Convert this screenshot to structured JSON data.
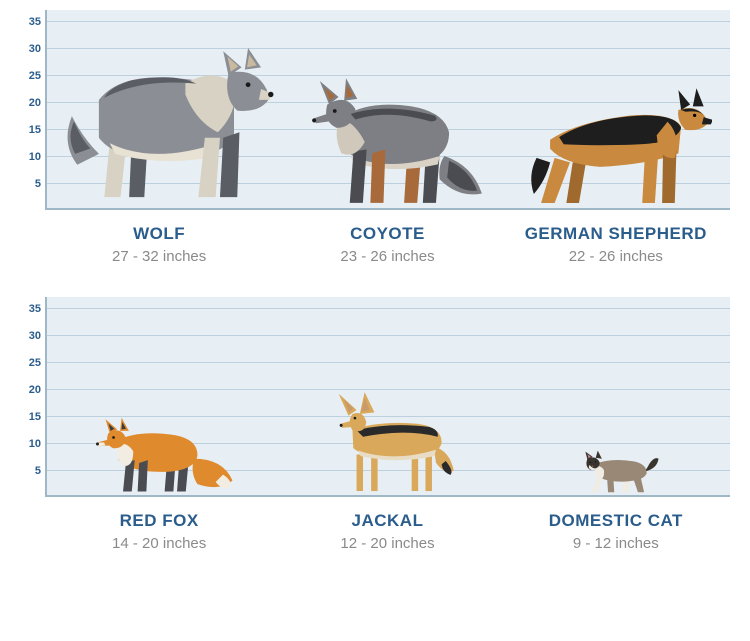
{
  "chart": {
    "type": "height-comparison-infographic",
    "background_color": "#e7eff4",
    "gridline_color": "#bcd0de",
    "axis_color": "#9fb8c8",
    "tick_label_color": "#2b5d8c",
    "tick_fontsize": 11,
    "name_color": "#2b5d8c",
    "name_fontsize": 17,
    "range_color": "#8a8a8a",
    "range_fontsize": 15,
    "y_ticks": [
      5,
      10,
      15,
      20,
      25,
      30,
      35
    ],
    "y_max": 37,
    "panels": [
      {
        "animals": [
          {
            "name": "WOLF",
            "range": "27 - 32 inches",
            "height_in": 32,
            "palette": {
              "body": "#8b8e94",
              "dark": "#5a5d63",
              "light": "#d8d2c4",
              "belly": "#e8e2d4",
              "ear_inner": "#c9b99e"
            }
          },
          {
            "name": "COYOTE",
            "range": "23 - 26 inches",
            "height_in": 26,
            "palette": {
              "body": "#7d7f84",
              "dark": "#4a4c51",
              "rust": "#a86a3a",
              "light": "#cfc8bb",
              "belly": "#d9d2c5"
            }
          },
          {
            "name": "GERMAN SHEPHERD",
            "range": "22 - 26 inches",
            "height_in": 26,
            "palette": {
              "tan": "#c98a3f",
              "black": "#1e1e1e",
              "dark_tan": "#a06a2e"
            }
          }
        ]
      },
      {
        "animals": [
          {
            "name": "RED FOX",
            "range": "14 - 20 inches",
            "height_in": 20,
            "palette": {
              "body": "#e08a2e",
              "dark": "#4a4c51",
              "white": "#f2ede3",
              "ear_dark": "#3a3c40"
            }
          },
          {
            "name": "JACKAL",
            "range": "12 - 20 inches",
            "height_in": 20,
            "palette": {
              "body": "#d9a85a",
              "dark": "#2a2a2a",
              "belly": "#e8dcc5",
              "ear_inner": "#c99a6a"
            }
          },
          {
            "name": "DOMESTIC CAT",
            "range": "9 - 12 inches",
            "height_in": 12,
            "palette": {
              "body": "#9a8876",
              "dark": "#3a342e",
              "white": "#f0ece4",
              "pink": "#c97a8a"
            }
          }
        ]
      }
    ]
  }
}
